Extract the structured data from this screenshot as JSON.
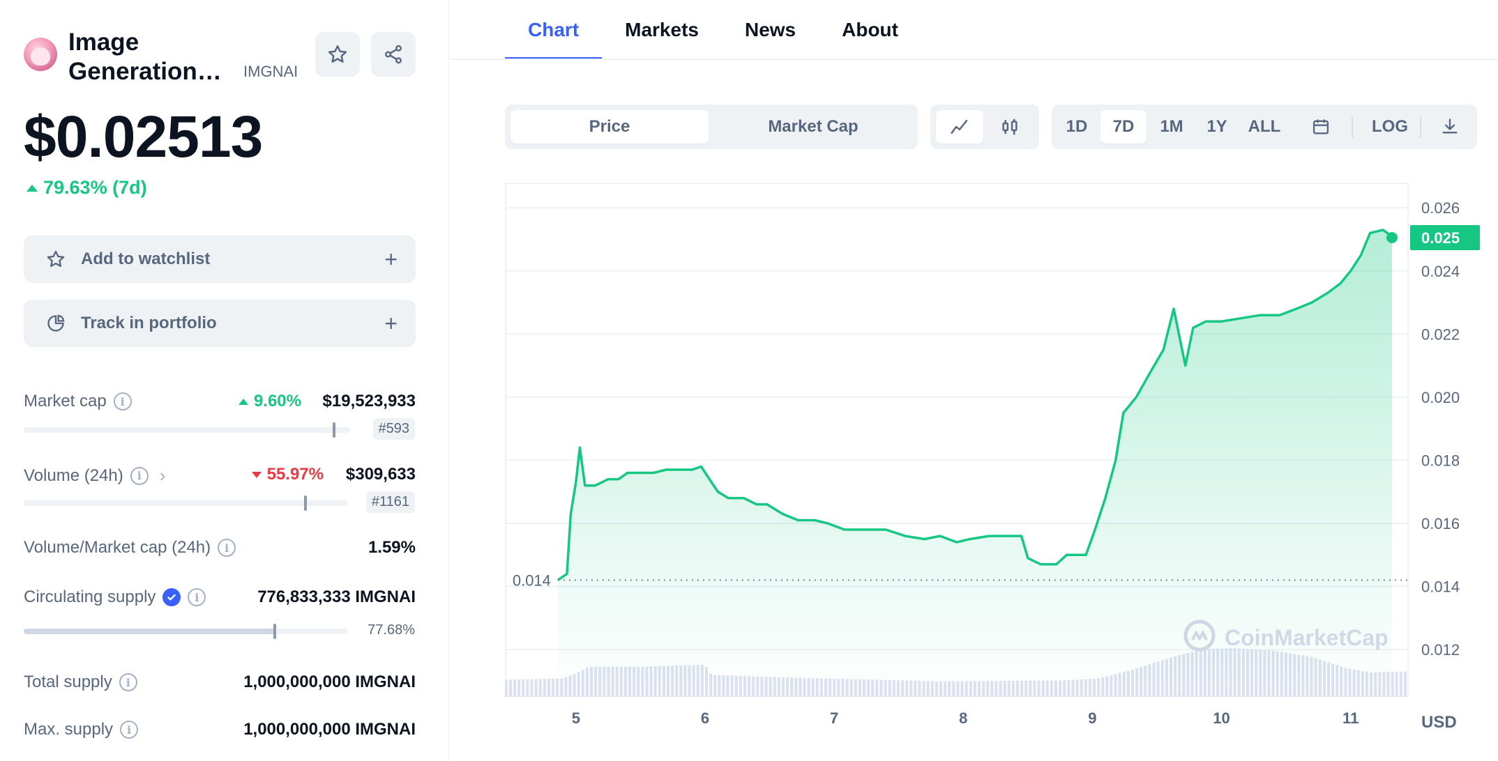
{
  "coin": {
    "name": "Image Generation…",
    "name_line1": "Image",
    "name_line2": "Generation…",
    "symbol": "IMGNAI",
    "price": "$0.02513",
    "change_7d": "79.63% (7d)"
  },
  "actions": {
    "watchlist": "Add to watchlist",
    "portfolio": "Track in portfolio"
  },
  "stats": {
    "market_cap": {
      "label": "Market cap",
      "change": "9.60%",
      "value": "$19,523,933",
      "rank": "#593",
      "level": 0.95
    },
    "volume": {
      "label": "Volume (24h)",
      "change": "55.97%",
      "value": "$309,633",
      "rank": "#1161",
      "level": 0.87
    },
    "vol_mcap": {
      "label": "Volume/Market cap (24h)",
      "value": "1.59%"
    },
    "circulating": {
      "label": "Circulating supply",
      "value": "776,833,333 IMGNAI",
      "pct": "77.68%",
      "level": 0.7768
    },
    "total_supply": {
      "label": "Total supply",
      "value": "1,000,000,000 IMGNAI"
    },
    "max_supply": {
      "label": "Max. supply",
      "value": "1,000,000,000 IMGNAI"
    }
  },
  "tabs": [
    "Chart",
    "Markets",
    "News",
    "About"
  ],
  "chart_controls": {
    "metric": [
      "Price",
      "Market Cap"
    ],
    "ranges": [
      "1D",
      "7D",
      "1M",
      "1Y",
      "ALL"
    ],
    "log": "LOG",
    "active_range": "7D"
  },
  "colors": {
    "up": "#16c784",
    "down": "#ea3943",
    "accent": "#3861fb"
  },
  "chart_data": {
    "type": "area",
    "currency": "USD",
    "watermark": "CoinMarketCap",
    "current_price_label": "0.025",
    "open_price_label": "0.014",
    "yticks": [
      "0.026",
      "0.024",
      "0.022",
      "0.020",
      "0.018",
      "0.016",
      "0.014",
      "0.012"
    ],
    "xticks": [
      "5",
      "6",
      "7",
      "8",
      "9",
      "10",
      "11"
    ],
    "ylim": [
      0.0105,
      0.0268
    ],
    "xlim": [
      4.45,
      11.45
    ],
    "price": [
      [
        4.86,
        0.0142
      ],
      [
        4.93,
        0.0144
      ],
      [
        4.96,
        0.0163
      ],
      [
        5.0,
        0.0173
      ],
      [
        5.03,
        0.0184
      ],
      [
        5.07,
        0.0172
      ],
      [
        5.15,
        0.0172
      ],
      [
        5.25,
        0.0174
      ],
      [
        5.33,
        0.0174
      ],
      [
        5.4,
        0.0176
      ],
      [
        5.5,
        0.0176
      ],
      [
        5.6,
        0.0176
      ],
      [
        5.7,
        0.0177
      ],
      [
        5.8,
        0.0177
      ],
      [
        5.9,
        0.0177
      ],
      [
        5.97,
        0.0178
      ],
      [
        6.05,
        0.0173
      ],
      [
        6.1,
        0.017
      ],
      [
        6.18,
        0.0168
      ],
      [
        6.3,
        0.0168
      ],
      [
        6.4,
        0.0166
      ],
      [
        6.48,
        0.0166
      ],
      [
        6.6,
        0.0163
      ],
      [
        6.72,
        0.0161
      ],
      [
        6.85,
        0.0161
      ],
      [
        6.95,
        0.016
      ],
      [
        7.08,
        0.0158
      ],
      [
        7.25,
        0.0158
      ],
      [
        7.4,
        0.0158
      ],
      [
        7.55,
        0.0156
      ],
      [
        7.7,
        0.0155
      ],
      [
        7.82,
        0.0156
      ],
      [
        7.95,
        0.0154
      ],
      [
        8.05,
        0.0155
      ],
      [
        8.2,
        0.0156
      ],
      [
        8.35,
        0.0156
      ],
      [
        8.45,
        0.0156
      ],
      [
        8.5,
        0.0149
      ],
      [
        8.6,
        0.0147
      ],
      [
        8.72,
        0.0147
      ],
      [
        8.8,
        0.015
      ],
      [
        8.95,
        0.015
      ],
      [
        9.02,
        0.0158
      ],
      [
        9.1,
        0.0168
      ],
      [
        9.18,
        0.018
      ],
      [
        9.24,
        0.0195
      ],
      [
        9.34,
        0.02
      ],
      [
        9.45,
        0.0208
      ],
      [
        9.55,
        0.0215
      ],
      [
        9.63,
        0.0228
      ],
      [
        9.72,
        0.021
      ],
      [
        9.78,
        0.0222
      ],
      [
        9.88,
        0.0224
      ],
      [
        10.0,
        0.0224
      ],
      [
        10.15,
        0.0225
      ],
      [
        10.3,
        0.0226
      ],
      [
        10.45,
        0.0226
      ],
      [
        10.58,
        0.0228
      ],
      [
        10.7,
        0.023
      ],
      [
        10.82,
        0.0233
      ],
      [
        10.92,
        0.0236
      ],
      [
        11.0,
        0.024
      ],
      [
        11.08,
        0.0245
      ],
      [
        11.15,
        0.0252
      ],
      [
        11.25,
        0.0253
      ],
      [
        11.32,
        0.0251
      ]
    ],
    "volume_relative": [
      [
        4.45,
        0.35
      ],
      [
        4.9,
        0.38
      ],
      [
        5.0,
        0.48
      ],
      [
        5.1,
        0.62
      ],
      [
        5.5,
        0.62
      ],
      [
        6.0,
        0.66
      ],
      [
        6.05,
        0.45
      ],
      [
        6.6,
        0.4
      ],
      [
        7.2,
        0.36
      ],
      [
        7.8,
        0.32
      ],
      [
        8.4,
        0.33
      ],
      [
        8.8,
        0.34
      ],
      [
        9.05,
        0.38
      ],
      [
        9.3,
        0.55
      ],
      [
        9.6,
        0.8
      ],
      [
        9.85,
        0.98
      ],
      [
        10.1,
        1.0
      ],
      [
        10.4,
        0.95
      ],
      [
        10.7,
        0.82
      ],
      [
        10.95,
        0.6
      ],
      [
        11.15,
        0.5
      ],
      [
        11.4,
        0.52
      ]
    ]
  }
}
